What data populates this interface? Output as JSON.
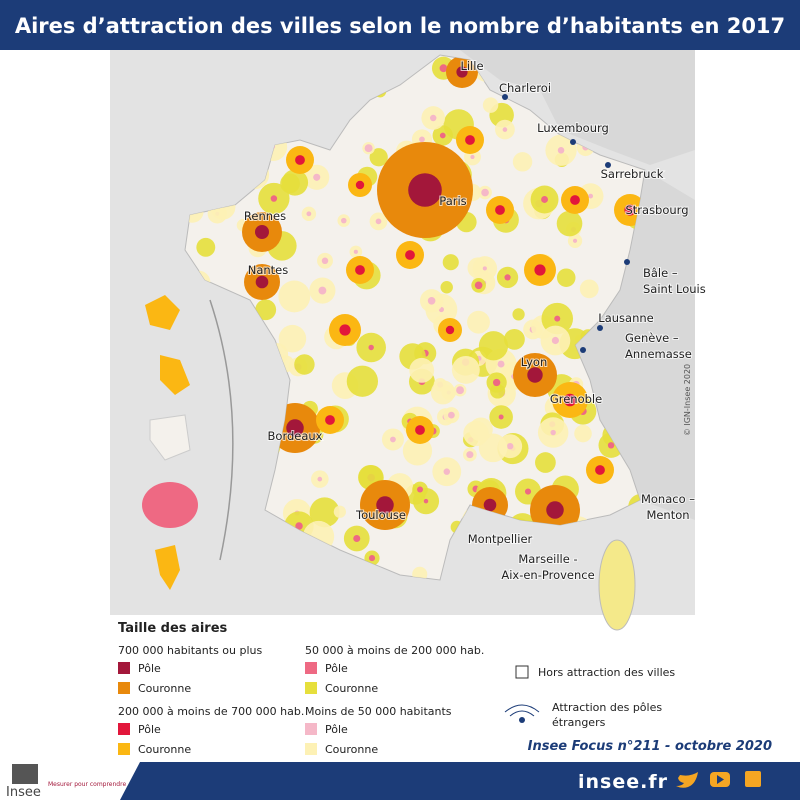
{
  "header": {
    "title": "Aires d’attraction des villes selon le nombre d’habitants en 2017"
  },
  "map": {
    "labels": [
      {
        "lines": [
          "Lille"
        ]
      },
      {
        "lines": [
          "Charleroi"
        ]
      },
      {
        "lines": [
          "Luxembourg"
        ]
      },
      {
        "lines": [
          "Sarrebruck"
        ]
      },
      {
        "lines": [
          "Paris"
        ]
      },
      {
        "lines": [
          "Strasbourg"
        ]
      },
      {
        "lines": [
          "Rennes"
        ]
      },
      {
        "lines": [
          "Nantes"
        ]
      },
      {
        "lines": [
          "Bâle –",
          "Saint Louis"
        ]
      },
      {
        "lines": [
          "Lausanne"
        ]
      },
      {
        "lines": [
          "Genève –",
          "Annemasse"
        ]
      },
      {
        "lines": [
          "Lyon"
        ]
      },
      {
        "lines": [
          "Grenoble"
        ]
      },
      {
        "lines": [
          "Bordeaux"
        ]
      },
      {
        "lines": [
          "Toulouse"
        ]
      },
      {
        "lines": [
          "Montpellier"
        ]
      },
      {
        "lines": [
          "Marseille -",
          "Aix-en-Provence"
        ]
      },
      {
        "lines": [
          "Monaco –",
          "Menton"
        ]
      }
    ],
    "credit": "© IGN-Insee 2020"
  },
  "legend": {
    "title": "Taille des aires",
    "groups": [
      {
        "title": "700 000 habitants ou plus",
        "items": [
          "Pôle",
          "Couronne"
        ],
        "colors": [
          "#a3173a",
          "#e8890c"
        ]
      },
      {
        "title": "50 000 à moins de 200 000 hab.",
        "items": [
          "Pôle",
          "Couronne"
        ],
        "colors": [
          "#ee6983",
          "#e6df3c"
        ]
      },
      {
        "title": "200 000 à moins de 700 000 hab.",
        "items": [
          "Pôle",
          "Couronne"
        ],
        "colors": [
          "#e2163b",
          "#fbb713"
        ]
      },
      {
        "title": "Moins de 50 000 habitants",
        "items": [
          "Pôle",
          "Couronne"
        ],
        "colors": [
          "#f5b8c8",
          "#fdf1b5"
        ]
      }
    ],
    "outside": "Hors attraction des villes",
    "foreign": [
      "Attraction des pôles",
      "étrangers"
    ]
  },
  "source": "Insee Focus n°211 - octobre 2020",
  "footer": {
    "logo": "Insee",
    "tagline": "Mesurer pour comprendre",
    "site": "insee.fr"
  }
}
